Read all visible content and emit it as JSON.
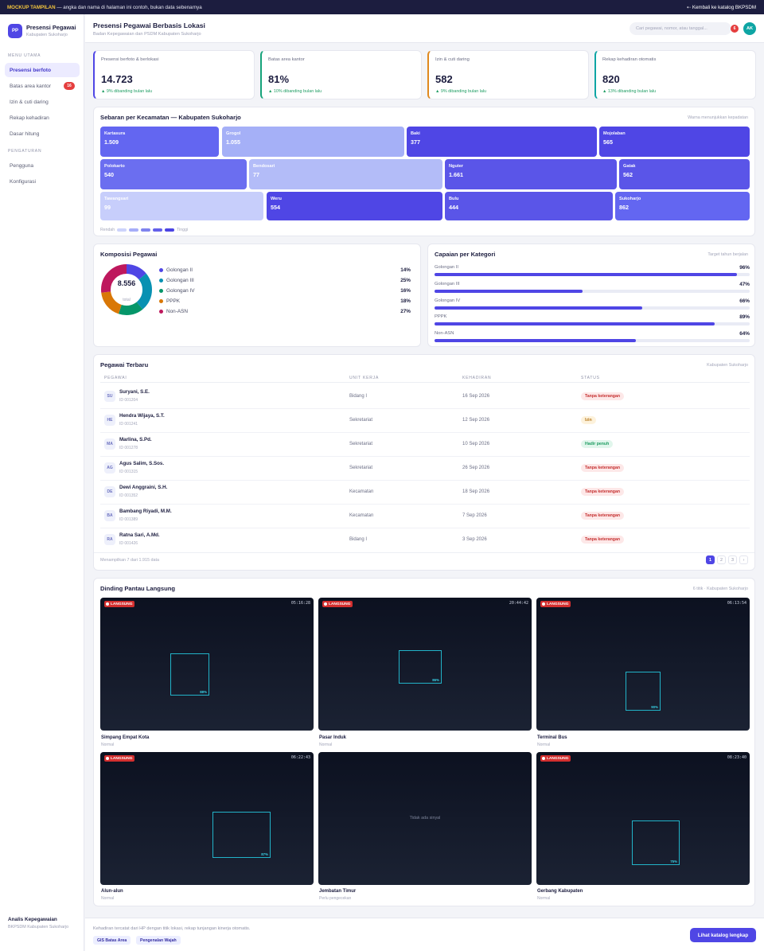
{
  "banner": {
    "tag": "MOCKUP TAMPILAN",
    "text": " — angka dan nama di halaman ini contoh, bukan data sebenarnya",
    "back": "⇠ Kembali ke katalog BKPSDM"
  },
  "sidebar": {
    "logo": "PP",
    "app_name": "Presensi Pegawai",
    "app_sub": "Kabupaten Sukoharjo",
    "section_main": "MENU UTAMA",
    "section_settings": "PENGATURAN",
    "items": [
      {
        "label": "Presensi berfoto"
      },
      {
        "label": "Batas area kantor",
        "badge": "16"
      },
      {
        "label": "Izin & cuti daring"
      },
      {
        "label": "Rekap kehadiran"
      },
      {
        "label": "Dasar hitung"
      }
    ],
    "settings": [
      {
        "label": "Pengguna"
      },
      {
        "label": "Konfigurasi"
      }
    ],
    "user_name": "Analis Kepegawaian",
    "user_role": "BKPSDM Kabupaten Sukoharjo"
  },
  "header": {
    "title": "Presensi Pegawai Berbasis Lokasi",
    "subtitle": "Badan Kepegawaian dan PSDM Kabupaten Sukoharjo",
    "search_placeholder": "Cari pegawai, nomor, atau tanggal...",
    "notif_count": "6",
    "avatar": "AK"
  },
  "stats": [
    {
      "label": "Presensi berfoto & berlokasi",
      "value": "14.723",
      "delta": "▲ 9% dibanding bulan lalu",
      "color": "#4f46e5"
    },
    {
      "label": "Batas area kantor",
      "value": "81%",
      "delta": "▲ 10% dibanding bulan lalu",
      "color": "#16a37a"
    },
    {
      "label": "Izin & cuti daring",
      "value": "582",
      "delta": "▲ 9% dibanding bulan lalu",
      "color": "#e0891e"
    },
    {
      "label": "Rekap kehadiran otomatis",
      "value": "820",
      "delta": "▲ 13% dibanding bulan lalu",
      "color": "#0ea5a4"
    }
  ],
  "map": {
    "title": "Sebaran per Kecamatan — Kabupaten Sukoharjo",
    "note": "Warna menunjukkan kepadatan",
    "legend_low": "Rendah",
    "legend_high": "Tinggi",
    "legend_colors": [
      "#cdd3fb",
      "#a6adf8",
      "#7f83ee",
      "#6360ea",
      "#4b44e3"
    ],
    "districts": [
      {
        "name": "Kartasura",
        "value": "1.509",
        "color": "#6366f1"
      },
      {
        "name": "Grogol",
        "value": "1.055",
        "color": "#a5b0f7"
      },
      {
        "name": "Baki",
        "value": "377",
        "color": "#4f46e5"
      },
      {
        "name": "Mojolaban",
        "value": "565",
        "color": "#4f46e5"
      },
      {
        "name": "Polokarto",
        "value": "540",
        "color": "#6b6ef0"
      },
      {
        "name": "Bendosari",
        "value": "77",
        "color": "#b3bcf8"
      },
      {
        "name": "Nguter",
        "value": "1.661",
        "color": "#5a55e8"
      },
      {
        "name": "Gatak",
        "value": "562",
        "color": "#5a55e8"
      },
      {
        "name": "Tawangsari",
        "value": "99",
        "color": "#c7cefb"
      },
      {
        "name": "Weru",
        "value": "554",
        "color": "#4f46e5"
      },
      {
        "name": "Bulu",
        "value": "444",
        "color": "#5a55e8"
      },
      {
        "name": "Sukoharjo",
        "value": "862",
        "color": "#6366f1"
      }
    ]
  },
  "composition": {
    "title": "Komposisi Pegawai",
    "total": "8.556",
    "total_label": "total",
    "items": [
      {
        "label": "Golongan II",
        "pct": "14%",
        "share": 14,
        "color": "#4f46e5"
      },
      {
        "label": "Golongan III",
        "pct": "25%",
        "share": 25,
        "color": "#0891b2"
      },
      {
        "label": "Golongan IV",
        "pct": "16%",
        "share": 16,
        "color": "#059669"
      },
      {
        "label": "PPPK",
        "pct": "18%",
        "share": 18,
        "color": "#d97706"
      },
      {
        "label": "Non-ASN",
        "pct": "27%",
        "share": 27,
        "color": "#be185d"
      }
    ]
  },
  "achievement": {
    "title": "Capaian per Kategori",
    "note": "Target tahun berjalan",
    "items": [
      {
        "label": "Golongan II",
        "pct": "96%",
        "level": 0.96
      },
      {
        "label": "Golongan III",
        "pct": "47%",
        "level": 0.47
      },
      {
        "label": "Golongan IV",
        "pct": "66%",
        "level": 0.66
      },
      {
        "label": "PPPK",
        "pct": "89%",
        "level": 0.89
      },
      {
        "label": "Non-ASN",
        "pct": "64%",
        "level": 0.64
      }
    ]
  },
  "table": {
    "title": "Pegawai Terbaru",
    "note": "Kabupaten Sukoharjo",
    "columns": [
      "PEGAWAI",
      "UNIT KERJA",
      "KEHADIRAN",
      "STATUS"
    ],
    "rows": [
      {
        "initials": "SU",
        "name": "Suryani, S.E.",
        "id": "ID 001204",
        "unit": "Bidang I",
        "date": "16 Sep 2026",
        "status": "Tanpa keterangan",
        "kind": "red"
      },
      {
        "initials": "HE",
        "name": "Hendra Wijaya, S.T.",
        "id": "ID 001241",
        "unit": "Sekretariat",
        "date": "12 Sep 2026",
        "status": "Izin",
        "kind": "amber"
      },
      {
        "initials": "MA",
        "name": "Marlina, S.Pd.",
        "id": "ID 001278",
        "unit": "Sekretariat",
        "date": "10 Sep 2026",
        "status": "Hadir penuh",
        "kind": "green"
      },
      {
        "initials": "AG",
        "name": "Agus Salim, S.Sos.",
        "id": "ID 001315",
        "unit": "Sekretariat",
        "date": "26 Sep 2026",
        "status": "Tanpa keterangan",
        "kind": "red"
      },
      {
        "initials": "DE",
        "name": "Dewi Anggraini, S.H.",
        "id": "ID 001352",
        "unit": "Kecamatan",
        "date": "18 Sep 2026",
        "status": "Tanpa keterangan",
        "kind": "red"
      },
      {
        "initials": "BA",
        "name": "Bambang Riyadi, M.M.",
        "id": "ID 001389",
        "unit": "Kecamatan",
        "date": "7 Sep 2026",
        "status": "Tanpa keterangan",
        "kind": "red"
      },
      {
        "initials": "RA",
        "name": "Ratna Sari, A.Md.",
        "id": "ID 001426",
        "unit": "Bidang I",
        "date": "3 Sep 2026",
        "status": "Tanpa keterangan",
        "kind": "red"
      }
    ],
    "footer": "Menampilkan 7 dari 1.915 data",
    "pages": [
      "1",
      "2",
      "3",
      "›"
    ]
  },
  "cameras": {
    "title": "Dinding Pantau Langsung",
    "note": "6 titik · Kabupaten Sukoharjo",
    "live_label": "LANGSUNG",
    "items": [
      {
        "name": "Simpang Empat Kota",
        "status": "Normal",
        "time": "05:16:28",
        "conf": "88%",
        "live": true
      },
      {
        "name": "Pasar Induk",
        "status": "Normal",
        "time": "20:44:42",
        "conf": "86%",
        "live": true
      },
      {
        "name": "Terminal Bus",
        "status": "Normal",
        "time": "06:13:54",
        "conf": "90%",
        "live": true
      },
      {
        "name": "Alun-alun",
        "status": "Normal",
        "time": "06:22:43",
        "conf": "87%",
        "live": true
      },
      {
        "name": "Jembatan Timur",
        "status": "Perlu pengecekan",
        "signal": "Tidak ada sinyal",
        "live": false
      },
      {
        "name": "Gerbang Kabupaten",
        "status": "Normal",
        "time": "08:23:40",
        "conf": "75%",
        "live": true
      }
    ]
  },
  "footer": {
    "text": "Kehadiran tercatat dari HP dengan titik lokasi, rekap tunjangan kinerja otomatis.",
    "tags": [
      "GIS Batas Area",
      "Pengenalan Wajah"
    ],
    "cta": "Lihat katalog lengkap"
  }
}
